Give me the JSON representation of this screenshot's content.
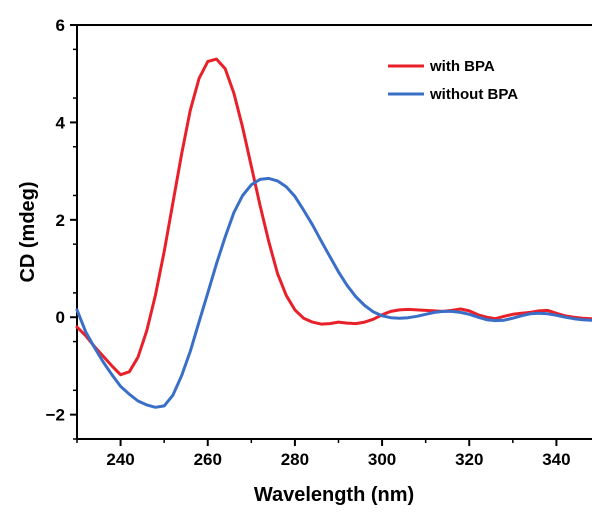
{
  "chart_data": {
    "type": "line",
    "title": "",
    "xlabel": "Wavelength (nm)",
    "ylabel": "CD (mdeg)",
    "xlim": [
      230,
      350
    ],
    "ylim": [
      -2.5,
      6
    ],
    "x_ticks": [
      240,
      260,
      280,
      300,
      320,
      340
    ],
    "x_tick_labels": [
      "240",
      "260",
      "280",
      "300",
      "320",
      "340"
    ],
    "y_ticks": [
      -2,
      0,
      2,
      4,
      6
    ],
    "y_tick_labels": [
      "−2",
      "0",
      "2",
      "4",
      "6"
    ],
    "grid": false,
    "legend_position": "top-right",
    "series": [
      {
        "name": "with BPA",
        "color": "#e8202a",
        "x": [
          230,
          232,
          234,
          236,
          238,
          240,
          242,
          244,
          246,
          248,
          250,
          252,
          254,
          256,
          258,
          260,
          262,
          264,
          266,
          268,
          270,
          272,
          274,
          276,
          278,
          280,
          282,
          284,
          286,
          288,
          290,
          292,
          294,
          296,
          298,
          300,
          302,
          304,
          306,
          308,
          310,
          312,
          314,
          316,
          318,
          320,
          322,
          324,
          326,
          328,
          330,
          332,
          334,
          336,
          338,
          340,
          342,
          344,
          346,
          348,
          350
        ],
        "y": [
          -0.2,
          -0.38,
          -0.6,
          -0.8,
          -1.0,
          -1.18,
          -1.12,
          -0.82,
          -0.28,
          0.45,
          1.35,
          2.35,
          3.35,
          4.25,
          4.9,
          5.25,
          5.3,
          5.1,
          4.6,
          3.9,
          3.1,
          2.3,
          1.55,
          0.9,
          0.45,
          0.15,
          -0.02,
          -0.1,
          -0.14,
          -0.13,
          -0.1,
          -0.12,
          -0.13,
          -0.1,
          -0.04,
          0.05,
          0.12,
          0.15,
          0.16,
          0.15,
          0.14,
          0.13,
          0.12,
          0.14,
          0.17,
          0.13,
          0.05,
          0.0,
          -0.03,
          0.02,
          0.06,
          0.08,
          0.1,
          0.13,
          0.14,
          0.08,
          0.03,
          0.0,
          -0.02,
          -0.03,
          -0.04
        ]
      },
      {
        "name": "without BPA",
        "color": "#3a6fc8",
        "x": [
          230,
          232,
          234,
          236,
          238,
          240,
          242,
          244,
          246,
          248,
          250,
          252,
          254,
          256,
          258,
          260,
          262,
          264,
          266,
          268,
          270,
          272,
          274,
          276,
          278,
          280,
          282,
          284,
          286,
          288,
          290,
          292,
          294,
          296,
          298,
          300,
          302,
          304,
          306,
          308,
          310,
          312,
          314,
          316,
          318,
          320,
          322,
          324,
          326,
          328,
          330,
          332,
          334,
          336,
          338,
          340,
          342,
          344,
          346,
          348,
          350
        ],
        "y": [
          0.15,
          -0.3,
          -0.62,
          -0.92,
          -1.18,
          -1.42,
          -1.58,
          -1.72,
          -1.8,
          -1.85,
          -1.82,
          -1.6,
          -1.2,
          -0.7,
          -0.1,
          0.5,
          1.1,
          1.65,
          2.15,
          2.5,
          2.72,
          2.83,
          2.85,
          2.8,
          2.68,
          2.48,
          2.2,
          1.9,
          1.57,
          1.25,
          0.93,
          0.65,
          0.42,
          0.24,
          0.11,
          0.03,
          -0.01,
          -0.02,
          -0.01,
          0.02,
          0.06,
          0.1,
          0.12,
          0.12,
          0.1,
          0.06,
          0.0,
          -0.05,
          -0.07,
          -0.06,
          -0.02,
          0.03,
          0.07,
          0.08,
          0.07,
          0.04,
          0.0,
          -0.03,
          -0.05,
          -0.06,
          -0.07
        ]
      }
    ]
  }
}
